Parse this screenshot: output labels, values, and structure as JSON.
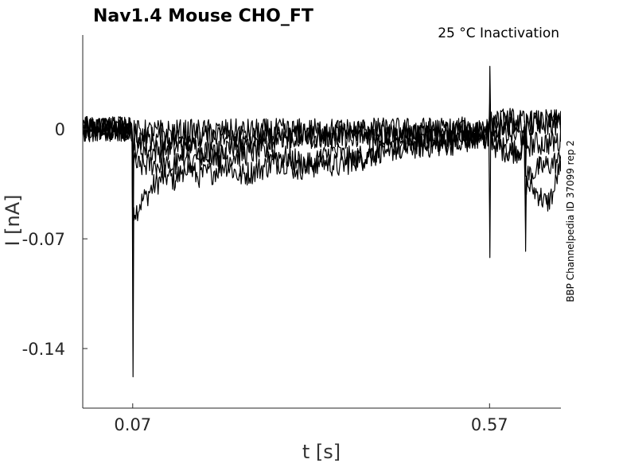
{
  "chart_data": {
    "type": "line",
    "title": "Nav1.4  Mouse  CHO_FT",
    "subtitle": "25 °C  Inactivation",
    "side_note": "BBP Channelpedia ID 37099 rep 2",
    "xlabel": "t [s]",
    "ylabel": "I [nA]",
    "xlim": [
      0.0,
      0.67
    ],
    "ylim": [
      -0.178,
      0.06
    ],
    "xticks": [
      0.07,
      0.57
    ],
    "xtick_labels": [
      "0.07",
      "0.57"
    ],
    "yticks": [
      0,
      -0.07,
      -0.14
    ],
    "ytick_labels": [
      "0",
      "-0.07",
      "-0.14"
    ],
    "grid": false,
    "legend": "none",
    "line_color": "#000000",
    "noise_band": [
      -0.008,
      0.008
    ],
    "series": [
      {
        "points": [
          [
            0.0,
            0.0
          ],
          [
            0.069,
            0.0
          ],
          [
            0.0705,
            -0.158
          ],
          [
            0.0715,
            -0.05
          ],
          [
            0.075,
            -0.052
          ],
          [
            0.08,
            -0.048
          ],
          [
            0.09,
            -0.042
          ],
          [
            0.1,
            -0.036
          ],
          [
            0.11,
            -0.032
          ],
          [
            0.12,
            -0.03
          ],
          [
            0.13,
            -0.033
          ],
          [
            0.14,
            -0.026
          ],
          [
            0.15,
            -0.02
          ],
          [
            0.17,
            -0.018
          ],
          [
            0.2,
            -0.012
          ],
          [
            0.25,
            -0.008
          ],
          [
            0.3,
            -0.005
          ],
          [
            0.4,
            -0.003
          ],
          [
            0.5,
            -0.002
          ],
          [
            0.569,
            -0.002
          ],
          [
            0.5705,
            -0.082
          ],
          [
            0.5715,
            -0.005
          ],
          [
            0.58,
            -0.012
          ],
          [
            0.6,
            -0.014
          ],
          [
            0.619,
            -0.01
          ],
          [
            0.6205,
            -0.078
          ],
          [
            0.6215,
            -0.035
          ],
          [
            0.63,
            -0.038
          ],
          [
            0.64,
            -0.042
          ],
          [
            0.65,
            -0.048
          ],
          [
            0.66,
            -0.04
          ],
          [
            0.67,
            -0.02
          ]
        ]
      },
      {
        "points": [
          [
            0.0,
            0.0
          ],
          [
            0.069,
            0.0
          ],
          [
            0.0705,
            -0.09
          ],
          [
            0.0715,
            -0.022
          ],
          [
            0.08,
            -0.024
          ],
          [
            0.1,
            -0.022
          ],
          [
            0.12,
            -0.025
          ],
          [
            0.14,
            -0.02
          ],
          [
            0.16,
            -0.03
          ],
          [
            0.18,
            -0.028
          ],
          [
            0.2,
            -0.022
          ],
          [
            0.22,
            -0.03
          ],
          [
            0.25,
            -0.025
          ],
          [
            0.28,
            -0.02
          ],
          [
            0.3,
            -0.026
          ],
          [
            0.33,
            -0.02
          ],
          [
            0.36,
            -0.024
          ],
          [
            0.4,
            -0.015
          ],
          [
            0.45,
            -0.012
          ],
          [
            0.5,
            -0.01
          ],
          [
            0.569,
            -0.006
          ],
          [
            0.5705,
            0.04
          ],
          [
            0.5715,
            -0.005
          ],
          [
            0.6,
            -0.015
          ],
          [
            0.619,
            -0.012
          ],
          [
            0.6205,
            -0.06
          ],
          [
            0.6215,
            -0.03
          ],
          [
            0.64,
            -0.025
          ],
          [
            0.67,
            -0.02
          ]
        ]
      },
      {
        "points": [
          [
            0.0,
            0.0
          ],
          [
            0.069,
            0.0
          ],
          [
            0.0705,
            -0.07
          ],
          [
            0.0715,
            -0.012
          ],
          [
            0.1,
            -0.014
          ],
          [
            0.15,
            -0.01
          ],
          [
            0.2,
            -0.018
          ],
          [
            0.25,
            -0.014
          ],
          [
            0.3,
            -0.02
          ],
          [
            0.32,
            -0.024
          ],
          [
            0.35,
            -0.014
          ],
          [
            0.38,
            -0.02
          ],
          [
            0.4,
            -0.018
          ],
          [
            0.45,
            -0.01
          ],
          [
            0.5,
            -0.008
          ],
          [
            0.569,
            -0.004
          ],
          [
            0.5705,
            0.02
          ],
          [
            0.5715,
            0.0
          ],
          [
            0.6,
            -0.004
          ],
          [
            0.619,
            -0.004
          ],
          [
            0.6205,
            -0.03
          ],
          [
            0.6215,
            -0.01
          ],
          [
            0.67,
            -0.008
          ]
        ]
      },
      {
        "points": [
          [
            0.0,
            0.0
          ],
          [
            0.069,
            0.0
          ],
          [
            0.0705,
            -0.04
          ],
          [
            0.0715,
            -0.006
          ],
          [
            0.2,
            -0.006
          ],
          [
            0.4,
            -0.004
          ],
          [
            0.569,
            -0.003
          ],
          [
            0.5705,
            0.01
          ],
          [
            0.5715,
            0.002
          ],
          [
            0.6,
            0.004
          ],
          [
            0.619,
            0.003
          ],
          [
            0.6205,
            -0.012
          ],
          [
            0.6215,
            0.003
          ],
          [
            0.67,
            0.004
          ]
        ]
      },
      {
        "points": [
          [
            0.0,
            0.0
          ],
          [
            0.069,
            0.0
          ],
          [
            0.0705,
            -0.02
          ],
          [
            0.0715,
            -0.002
          ],
          [
            0.3,
            -0.001
          ],
          [
            0.569,
            0.0
          ],
          [
            0.5705,
            0.005
          ],
          [
            0.5715,
            0.004
          ],
          [
            0.6,
            0.006
          ],
          [
            0.619,
            0.004
          ],
          [
            0.6205,
            -0.006
          ],
          [
            0.6215,
            0.004
          ],
          [
            0.67,
            0.005
          ]
        ]
      }
    ]
  }
}
